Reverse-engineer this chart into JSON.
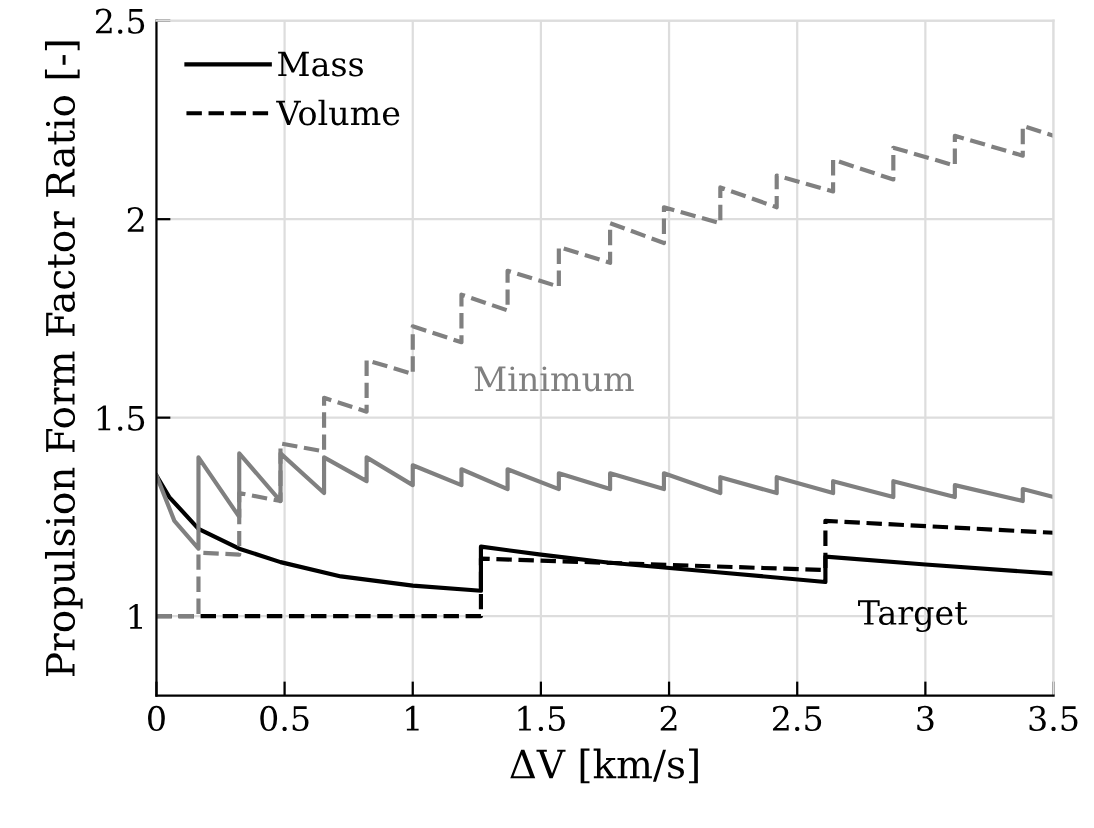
{
  "chart_data": {
    "type": "line",
    "xlabel": "ΔV [km/s]",
    "ylabel": "Propulsion Form Factor Ratio [-]",
    "xlim": [
      0,
      3.5
    ],
    "ylim": [
      0.8,
      2.5
    ],
    "xticks": [
      0,
      0.5,
      1,
      1.5,
      2,
      2.5,
      3,
      3.5
    ],
    "yticks": [
      1,
      1.5,
      2,
      2.5
    ],
    "grid": true,
    "legend": "top left",
    "annotations": [
      "Minimum",
      "Target"
    ],
    "series": [
      {
        "name": "Mass",
        "color": "#000000",
        "line_style": "solid",
        "x": [
          0,
          0.05,
          0.164,
          0.323,
          0.484,
          0.72,
          1.0,
          1.266,
          1.266,
          1.5,
          1.76,
          2.2,
          2.61,
          2.61,
          3.0,
          3.5
        ],
        "values": [
          1.354,
          1.3,
          1.22,
          1.17,
          1.136,
          1.1,
          1.077,
          1.064,
          1.175,
          1.155,
          1.135,
          1.11,
          1.086,
          1.15,
          1.13,
          1.107
        ]
      },
      {
        "name": "Volume",
        "color": "#000000",
        "line_style": "dashed",
        "x": [
          0,
          1.266,
          1.266,
          2.61,
          2.61,
          3.5
        ],
        "values": [
          1.0,
          1.0,
          1.145,
          1.116,
          1.24,
          1.21
        ]
      },
      {
        "color": "#808080",
        "line_style": "solid",
        "x": [
          0,
          0.07,
          0.164,
          0.164,
          0.323,
          0.323,
          0.484,
          0.484,
          0.654,
          0.654,
          0.82,
          0.82,
          1.0,
          1.0,
          1.19,
          1.19,
          1.37,
          1.37,
          1.57,
          1.57,
          1.77,
          1.77,
          1.98,
          1.98,
          2.2,
          2.2,
          2.42,
          2.42,
          2.64,
          2.64,
          2.875,
          2.875,
          3.115,
          3.115,
          3.38,
          3.38,
          3.5
        ],
        "values": [
          1.354,
          1.24,
          1.17,
          1.4,
          1.25,
          1.41,
          1.29,
          1.41,
          1.31,
          1.4,
          1.34,
          1.4,
          1.33,
          1.38,
          1.33,
          1.37,
          1.32,
          1.37,
          1.32,
          1.36,
          1.32,
          1.36,
          1.32,
          1.36,
          1.31,
          1.35,
          1.31,
          1.35,
          1.31,
          1.34,
          1.3,
          1.34,
          1.3,
          1.33,
          1.29,
          1.32,
          1.3
        ]
      },
      {
        "color": "#808080",
        "line_style": "dashed",
        "x": [
          0,
          0.164,
          0.164,
          0.323,
          0.323,
          0.484,
          0.484,
          0.654,
          0.654,
          0.82,
          0.82,
          1.0,
          1.0,
          1.19,
          1.19,
          1.37,
          1.37,
          1.57,
          1.57,
          1.77,
          1.77,
          1.98,
          1.98,
          2.2,
          2.2,
          2.42,
          2.42,
          2.64,
          2.64,
          2.875,
          2.875,
          3.115,
          3.115,
          3.38,
          3.38,
          3.5
        ],
        "values": [
          1.0,
          1.0,
          1.16,
          1.155,
          1.31,
          1.29,
          1.435,
          1.415,
          1.55,
          1.515,
          1.645,
          1.61,
          1.73,
          1.69,
          1.81,
          1.77,
          1.87,
          1.83,
          1.93,
          1.89,
          1.99,
          1.94,
          2.03,
          1.99,
          2.08,
          2.03,
          2.11,
          2.07,
          2.15,
          2.1,
          2.18,
          2.135,
          2.21,
          2.16,
          2.235,
          2.21
        ]
      }
    ]
  }
}
